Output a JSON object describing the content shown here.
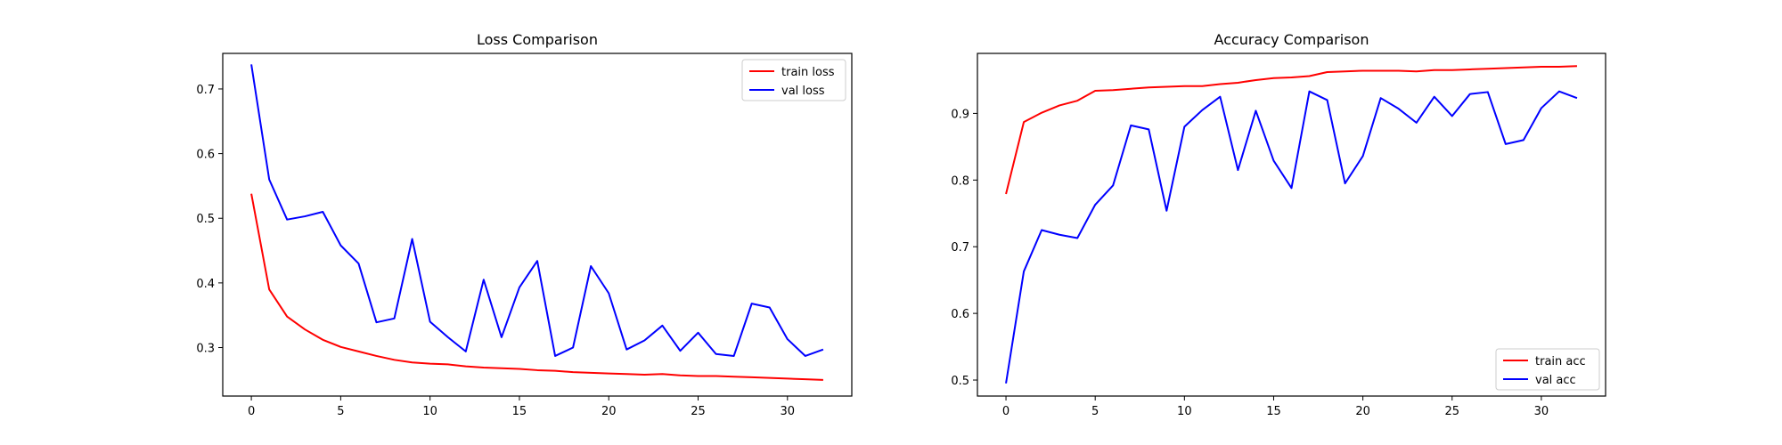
{
  "chart_data": [
    {
      "type": "line",
      "title": "Loss Comparison",
      "xlabel": "",
      "ylabel": "",
      "xlim": [
        -1.6,
        33.6
      ],
      "ylim": [
        0.225,
        0.755
      ],
      "xticks": [
        0,
        5,
        10,
        15,
        20,
        25,
        30
      ],
      "yticks": [
        0.3,
        0.4,
        0.5,
        0.6,
        0.7
      ],
      "legend": "top-right",
      "grid": false,
      "x": [
        0,
        1,
        2,
        3,
        4,
        5,
        6,
        7,
        8,
        9,
        10,
        11,
        12,
        13,
        14,
        15,
        16,
        17,
        18,
        19,
        20,
        21,
        22,
        23,
        24,
        25,
        26,
        27,
        28,
        29,
        30,
        31,
        32
      ],
      "series": [
        {
          "name": "train loss",
          "color": "#ff0000",
          "values": [
            0.538,
            0.39,
            0.348,
            0.328,
            0.312,
            0.301,
            0.294,
            0.287,
            0.281,
            0.277,
            0.275,
            0.274,
            0.271,
            0.269,
            0.268,
            0.267,
            0.265,
            0.264,
            0.262,
            0.261,
            0.26,
            0.259,
            0.258,
            0.259,
            0.257,
            0.256,
            0.256,
            0.255,
            0.254,
            0.253,
            0.252,
            0.251,
            0.25
          ]
        },
        {
          "name": "val loss",
          "color": "#0000ff",
          "values": [
            0.738,
            0.56,
            0.498,
            0.503,
            0.51,
            0.458,
            0.43,
            0.339,
            0.345,
            0.468,
            0.34,
            0.316,
            0.294,
            0.405,
            0.316,
            0.393,
            0.434,
            0.287,
            0.3,
            0.426,
            0.384,
            0.297,
            0.311,
            0.334,
            0.295,
            0.323,
            0.29,
            0.287,
            0.368,
            0.362,
            0.313,
            0.287,
            0.297
          ]
        }
      ]
    },
    {
      "type": "line",
      "title": "Accuracy Comparison",
      "xlabel": "",
      "ylabel": "",
      "xlim": [
        -1.6,
        33.6
      ],
      "ylim": [
        0.476,
        0.99
      ],
      "xticks": [
        0,
        5,
        10,
        15,
        20,
        25,
        30
      ],
      "yticks": [
        0.5,
        0.6,
        0.7,
        0.8,
        0.9
      ],
      "legend": "bottom-right",
      "grid": false,
      "x": [
        0,
        1,
        2,
        3,
        4,
        5,
        6,
        7,
        8,
        9,
        10,
        11,
        12,
        13,
        14,
        15,
        16,
        17,
        18,
        19,
        20,
        21,
        22,
        23,
        24,
        25,
        26,
        27,
        28,
        29,
        30,
        31,
        32
      ],
      "series": [
        {
          "name": "train acc",
          "color": "#ff0000",
          "values": [
            0.779,
            0.887,
            0.901,
            0.912,
            0.919,
            0.934,
            0.935,
            0.937,
            0.939,
            0.94,
            0.941,
            0.941,
            0.944,
            0.946,
            0.95,
            0.953,
            0.954,
            0.956,
            0.962,
            0.963,
            0.964,
            0.964,
            0.964,
            0.963,
            0.965,
            0.965,
            0.966,
            0.967,
            0.968,
            0.969,
            0.97,
            0.97,
            0.971
          ]
        },
        {
          "name": "val acc",
          "color": "#0000ff",
          "values": [
            0.495,
            0.663,
            0.725,
            0.718,
            0.713,
            0.763,
            0.792,
            0.882,
            0.876,
            0.754,
            0.88,
            0.905,
            0.925,
            0.815,
            0.904,
            0.829,
            0.788,
            0.933,
            0.92,
            0.795,
            0.836,
            0.923,
            0.907,
            0.886,
            0.925,
            0.896,
            0.929,
            0.932,
            0.854,
            0.86,
            0.908,
            0.933,
            0.923
          ]
        }
      ]
    }
  ]
}
